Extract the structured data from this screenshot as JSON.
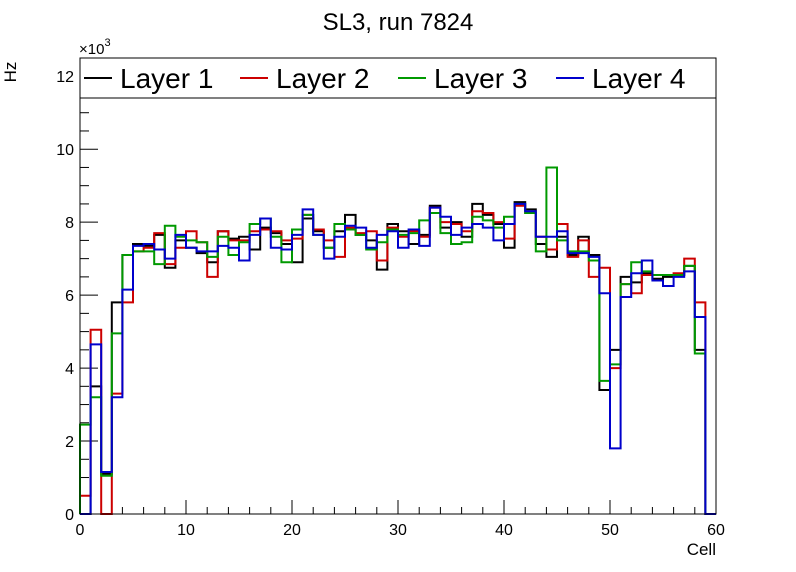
{
  "chart_data": {
    "type": "histogram-step",
    "title": "SL3, run 7824",
    "xlabel": "Cell",
    "ylabel": "Hz",
    "y_multiplier_base": "×10",
    "y_multiplier_exp": "3",
    "xlim": [
      0,
      60
    ],
    "ylim": [
      0,
      12.5
    ],
    "x_major_ticks": [
      0,
      10,
      20,
      30,
      40,
      50,
      60
    ],
    "y_major_ticks": [
      0,
      2,
      4,
      6,
      8,
      10,
      12
    ],
    "x_tick_labels": [
      "0",
      "10",
      "20",
      "30",
      "40",
      "50",
      "60"
    ],
    "y_tick_labels": [
      "0",
      "2",
      "4",
      "6",
      "8",
      "10",
      "12"
    ],
    "legend_position": "top",
    "series": [
      {
        "name": "Layer 1",
        "color": "#000000",
        "values": [
          0.0,
          3.5,
          1.1,
          5.8,
          7.1,
          7.4,
          7.35,
          7.65,
          6.75,
          7.5,
          7.3,
          7.15,
          6.9,
          7.75,
          7.55,
          7.6,
          7.25,
          7.85,
          7.7,
          7.4,
          6.9,
          8.1,
          7.75,
          7.3,
          7.75,
          8.2,
          7.65,
          7.5,
          6.7,
          7.95,
          7.75,
          7.4,
          7.65,
          8.45,
          7.85,
          8.0,
          7.6,
          8.5,
          8.2,
          7.95,
          7.3,
          8.55,
          8.35,
          7.4,
          7.05,
          7.6,
          7.1,
          7.6,
          7.1,
          3.4,
          4.5,
          6.5,
          6.35,
          6.6,
          6.45,
          6.5,
          6.55,
          6.8,
          4.5,
          0.0
        ]
      },
      {
        "name": "Layer 2",
        "color": "#cc0000",
        "values": [
          0.5,
          5.05,
          0.0,
          3.3,
          5.8,
          7.2,
          7.3,
          7.7,
          6.85,
          7.3,
          7.75,
          7.45,
          6.5,
          7.75,
          7.5,
          7.5,
          7.75,
          7.8,
          7.75,
          7.5,
          7.55,
          8.2,
          7.8,
          7.5,
          7.05,
          7.85,
          7.7,
          7.75,
          6.95,
          7.85,
          7.6,
          7.75,
          7.6,
          8.4,
          8.0,
          7.95,
          7.75,
          8.3,
          8.25,
          8.0,
          7.55,
          8.45,
          8.25,
          7.6,
          7.25,
          7.95,
          7.05,
          7.5,
          6.5,
          6.75,
          4.0,
          6.3,
          6.05,
          6.55,
          6.55,
          6.55,
          6.6,
          7.0,
          5.8,
          0.0
        ]
      },
      {
        "name": "Layer 3",
        "color": "#009900",
        "values": [
          2.45,
          3.2,
          1.05,
          4.95,
          7.1,
          7.2,
          7.2,
          6.85,
          7.9,
          7.6,
          7.5,
          7.45,
          7.05,
          7.6,
          7.1,
          7.45,
          7.95,
          8.1,
          7.6,
          6.9,
          7.8,
          8.2,
          7.65,
          7.3,
          7.95,
          7.8,
          7.65,
          7.25,
          7.45,
          7.8,
          7.65,
          7.7,
          8.05,
          8.25,
          7.7,
          7.4,
          7.45,
          8.15,
          8.05,
          7.85,
          8.15,
          8.5,
          8.25,
          7.2,
          9.5,
          7.5,
          7.2,
          7.2,
          6.95,
          3.65,
          4.1,
          6.3,
          6.9,
          6.65,
          6.55,
          6.55,
          6.55,
          6.8,
          4.4,
          0.0
        ]
      },
      {
        "name": "Layer 4",
        "color": "#0000cc",
        "values": [
          0.0,
          4.65,
          1.15,
          3.2,
          6.15,
          7.35,
          7.4,
          7.25,
          7.0,
          7.65,
          7.3,
          7.2,
          7.2,
          7.35,
          7.3,
          6.95,
          7.65,
          8.1,
          7.3,
          7.25,
          7.65,
          8.35,
          7.65,
          7.0,
          7.6,
          7.9,
          7.85,
          7.3,
          7.65,
          7.75,
          7.3,
          7.8,
          7.35,
          8.4,
          8.15,
          7.65,
          7.85,
          7.95,
          7.85,
          7.5,
          7.95,
          8.5,
          8.3,
          7.6,
          7.6,
          7.75,
          7.15,
          7.15,
          7.05,
          6.05,
          1.8,
          5.95,
          6.6,
          6.95,
          6.4,
          6.25,
          6.5,
          6.65,
          5.4,
          0.0
        ]
      }
    ]
  }
}
